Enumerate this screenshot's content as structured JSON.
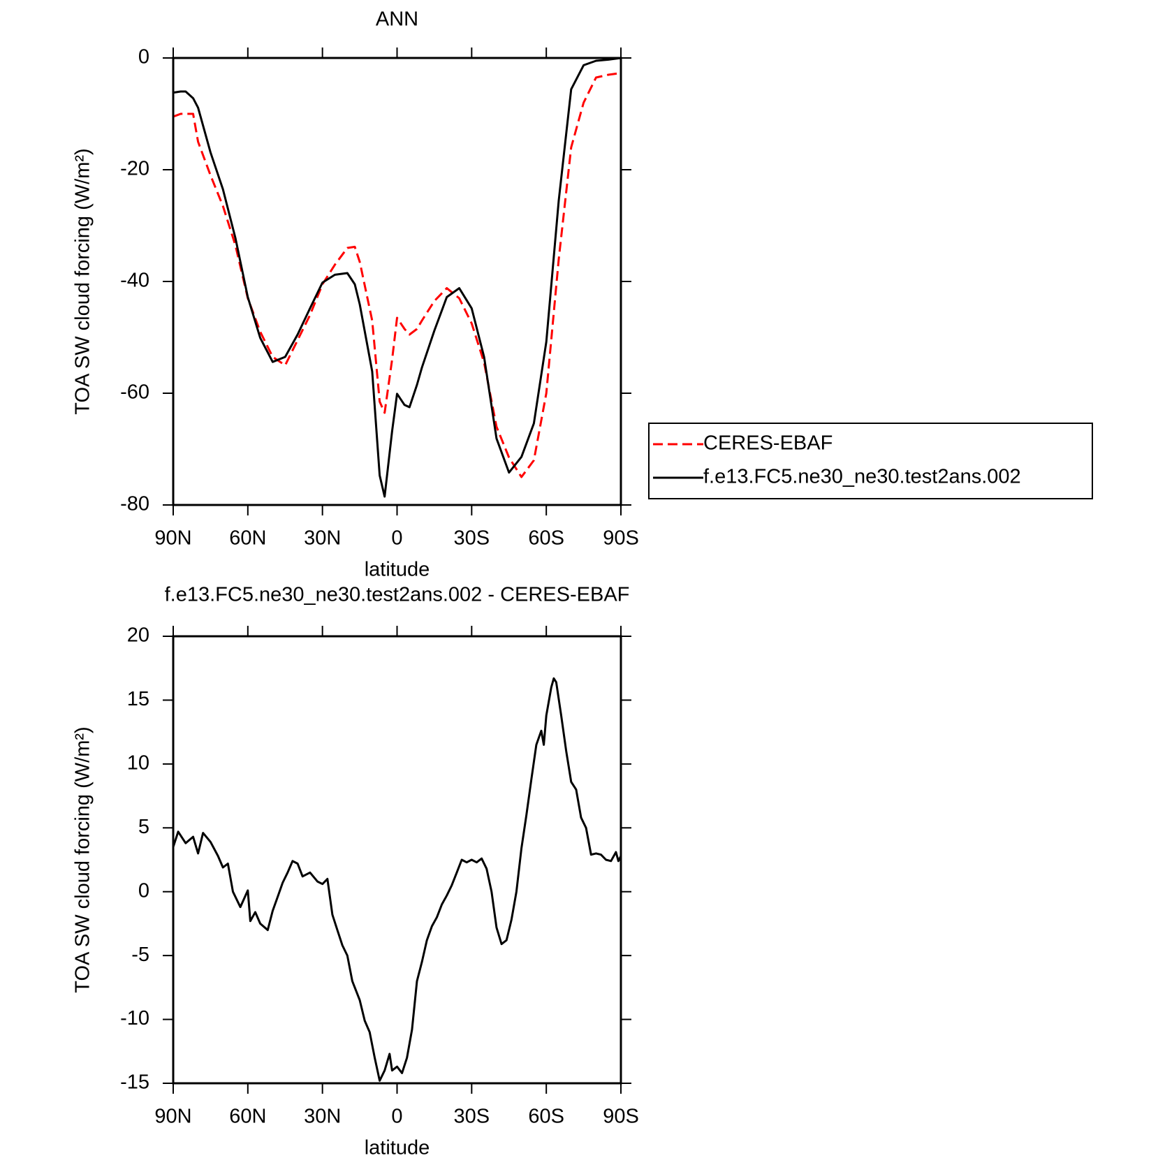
{
  "chart_data": [
    {
      "type": "line",
      "title": "ANN",
      "xlabel": "latitude",
      "ylabel": "TOA SW cloud forcing (W/m²)",
      "x": [
        90,
        87,
        85,
        82,
        80,
        75,
        70,
        65,
        60,
        55,
        50,
        45,
        40,
        35,
        30,
        25,
        20,
        17,
        15,
        10,
        7,
        5,
        2,
        0,
        -3,
        -5,
        -8,
        -10,
        -15,
        -20,
        -25,
        -30,
        -35,
        -40,
        -45,
        -50,
        -55,
        -60,
        -65,
        -70,
        -75,
        -80,
        -85,
        -90
      ],
      "series": [
        {
          "name": "CERES-EBAF",
          "color": "#ff0000",
          "dash": true,
          "values": [
            -10.5,
            -10,
            -10,
            -10,
            -15,
            -21,
            -26.5,
            -33.5,
            -43,
            -49,
            -53.5,
            -55,
            -50.5,
            -46,
            -40.5,
            -37,
            -34,
            -33.8,
            -36.5,
            -47,
            -61.5,
            -63.5,
            -54,
            -46.5,
            -48.5,
            -49.5,
            -48.5,
            -47,
            -43.5,
            -41.2,
            -43,
            -47.5,
            -54.5,
            -66,
            -71.5,
            -75,
            -72,
            -60,
            -36,
            -16,
            -8,
            -3.5,
            -3,
            -2.7
          ]
        },
        {
          "name": "f.e13.FC5.ne30_ne30.test2ans.002",
          "color": "#000000",
          "dash": false,
          "values": [
            -6.2,
            -6,
            -6,
            -7.2,
            -8.9,
            -16.9,
            -23.5,
            -32.2,
            -42.8,
            -50.1,
            -54.4,
            -53.5,
            -49.5,
            -44.8,
            -40.2,
            -38.8,
            -38.5,
            -40.5,
            -44.1,
            -56.1,
            -74.7,
            -78.5,
            -66.8,
            -60.1,
            -62.1,
            -62.5,
            -58.5,
            -55.4,
            -48.8,
            -42.8,
            -41.2,
            -44.8,
            -53.5,
            -68.1,
            -74.2,
            -71.4,
            -65.4,
            -50.8,
            -25.5,
            -5.6,
            -1.3,
            -0.5,
            -0.3,
            0
          ]
        }
      ],
      "xlim": [
        90,
        -90
      ],
      "xticks": [
        {
          "value": 90,
          "label": "90N"
        },
        {
          "value": 60,
          "label": "60N"
        },
        {
          "value": 30,
          "label": "30N"
        },
        0,
        {
          "value": -30,
          "label": "30S"
        },
        {
          "value": -60,
          "label": "60S"
        },
        {
          "value": -90,
          "label": "90S"
        }
      ],
      "ylim": [
        -80,
        0
      ],
      "yticks": [
        -80,
        -60,
        -40,
        -20,
        0
      ],
      "legend": "right"
    },
    {
      "type": "line",
      "title": "f.e13.FC5.ne30_ne30.test2ans.002 - CERES-EBAF",
      "xlabel": "latitude",
      "ylabel": "TOA SW cloud forcing (W/m²)",
      "x": [
        90,
        88,
        85,
        82,
        80,
        78,
        75,
        72,
        70,
        68,
        66,
        63,
        60,
        59,
        57,
        55,
        52,
        50,
        48,
        46,
        44,
        42,
        40,
        38,
        35,
        32,
        30,
        28,
        26,
        24,
        22,
        20,
        18,
        15,
        13,
        11,
        9,
        7,
        5,
        3,
        2,
        0,
        -2,
        -4,
        -6,
        -8,
        -10,
        -12,
        -14,
        -16,
        -18,
        -20,
        -22,
        -24,
        -26,
        -28,
        -30,
        -32,
        -34,
        -36,
        -38,
        -40,
        -42,
        -44,
        -46,
        -48,
        -50,
        -52,
        -54,
        -56,
        -58,
        -59,
        -60,
        -62,
        -63,
        -64,
        -66,
        -68,
        -70,
        -72,
        -74,
        -76,
        -78,
        -80,
        -82,
        -84,
        -86,
        -88,
        -89,
        -90
      ],
      "values": [
        3.5,
        4.7,
        3.8,
        4.3,
        3.0,
        4.6,
        3.9,
        2.8,
        1.9,
        2.2,
        0.0,
        -1.2,
        0.1,
        -2.3,
        -1.6,
        -2.5,
        -3.0,
        -1.5,
        -0.4,
        0.7,
        1.5,
        2.4,
        2.2,
        1.2,
        1.5,
        0.8,
        0.6,
        1.0,
        -1.8,
        -3.0,
        -4.2,
        -5.0,
        -7.0,
        -8.5,
        -10.1,
        -11.0,
        -13.0,
        -14.8,
        -14.0,
        -12.7,
        -14.0,
        -13.7,
        -14.2,
        -13.0,
        -10.8,
        -7.0,
        -5.5,
        -3.8,
        -2.7,
        -2.0,
        -1.0,
        -0.3,
        0.5,
        1.5,
        2.5,
        2.3,
        2.5,
        2.3,
        2.6,
        1.8,
        0.0,
        -2.8,
        -4.1,
        -3.8,
        -2.2,
        0.0,
        3.4,
        6.0,
        8.8,
        11.5,
        12.6,
        11.5,
        13.8,
        16.0,
        16.7,
        16.4,
        13.8,
        11.0,
        8.6,
        8.0,
        5.8,
        5.0,
        2.9,
        3.0,
        2.9,
        2.5,
        2.4,
        3.1,
        2.4,
        2.8
      ],
      "color": "#000000",
      "xlim": [
        90,
        -90
      ],
      "xticks": [
        {
          "value": 90,
          "label": "90N"
        },
        {
          "value": 60,
          "label": "60N"
        },
        {
          "value": 30,
          "label": "30N"
        },
        0,
        {
          "value": -30,
          "label": "30S"
        },
        {
          "value": -60,
          "label": "60S"
        },
        {
          "value": -90,
          "label": "90S"
        }
      ],
      "ylim": [
        -15,
        20
      ],
      "yticks": [
        -15,
        -10,
        -5,
        0,
        5,
        10,
        15,
        20
      ]
    }
  ]
}
